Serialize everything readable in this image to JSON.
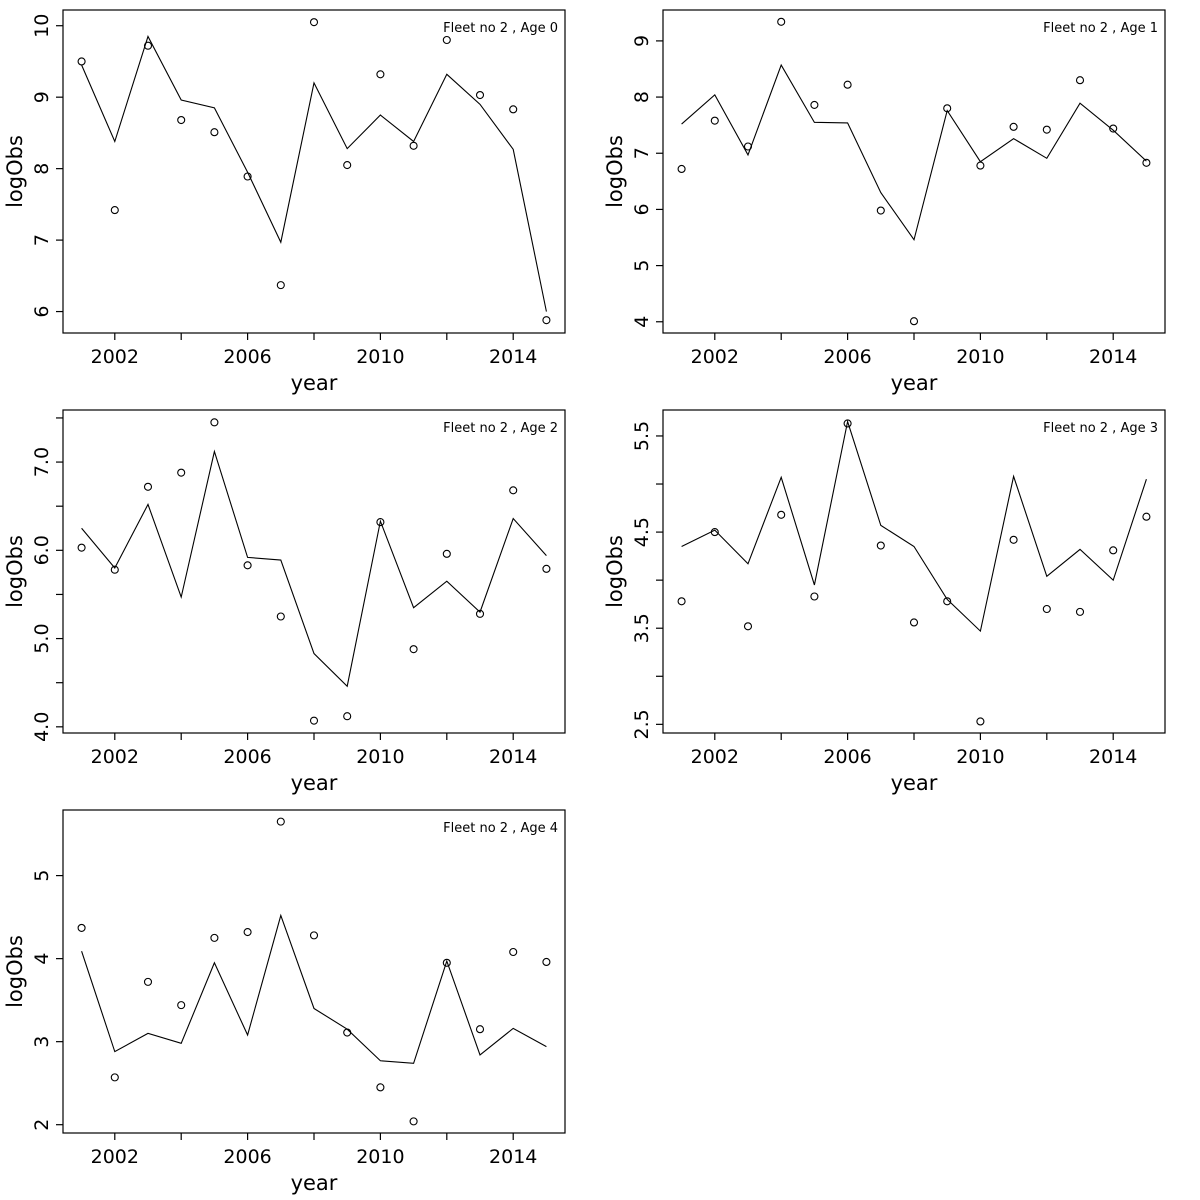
{
  "page": {
    "background": "#ffffff",
    "foreground": "#000000",
    "description": "Grid of five R-style diagnostic plots of observed (open circles) vs fitted (line) log observations by fleet age"
  },
  "chart_data": [
    {
      "type": "line",
      "title": "Fleet no 2 , Age 0",
      "xlabel": "year",
      "ylabel": "logObs",
      "x": [
        2001,
        2002,
        2003,
        2004,
        2005,
        2006,
        2007,
        2008,
        2009,
        2010,
        2011,
        2012,
        2013,
        2014,
        2015
      ],
      "xlim": [
        2000.44,
        2015.56
      ],
      "ylim": [
        5.7,
        10.22
      ],
      "xticks": {
        "values": [
          2002,
          2004,
          2006,
          2008,
          2010,
          2012,
          2014
        ],
        "labels": [
          "2002",
          "",
          "2006",
          "",
          "2010",
          "",
          "2014"
        ]
      },
      "yticks": {
        "values": [
          6,
          7,
          8,
          9,
          10
        ],
        "labels": [
          "6",
          "7",
          "8",
          "9",
          "10"
        ]
      },
      "grid": false,
      "legend": "none",
      "series": [
        {
          "name": "observed",
          "style": "points",
          "values": [
            9.5,
            7.42,
            9.72,
            8.68,
            8.51,
            7.89,
            6.37,
            10.05,
            8.05,
            9.32,
            8.32,
            9.8,
            9.03,
            8.83,
            5.88
          ]
        },
        {
          "name": "fitted",
          "style": "line",
          "values": [
            9.45,
            8.38,
            9.85,
            8.96,
            8.85,
            7.95,
            6.97,
            9.2,
            8.28,
            8.75,
            8.38,
            9.32,
            8.9,
            8.27,
            6.0
          ]
        }
      ]
    },
    {
      "type": "line",
      "title": "Fleet no 2 , Age 1",
      "xlabel": "year",
      "ylabel": "logObs",
      "x": [
        2001,
        2002,
        2003,
        2004,
        2005,
        2006,
        2007,
        2008,
        2009,
        2010,
        2011,
        2012,
        2013,
        2014,
        2015
      ],
      "xlim": [
        2000.44,
        2015.56
      ],
      "ylim": [
        3.8,
        9.55
      ],
      "xticks": {
        "values": [
          2002,
          2004,
          2006,
          2008,
          2010,
          2012,
          2014
        ],
        "labels": [
          "2002",
          "",
          "2006",
          "",
          "2010",
          "",
          "2014"
        ]
      },
      "yticks": {
        "values": [
          4,
          5,
          6,
          7,
          8,
          9
        ],
        "labels": [
          "4",
          "5",
          "6",
          "7",
          "8",
          "9"
        ]
      },
      "grid": false,
      "legend": "none",
      "series": [
        {
          "name": "observed",
          "style": "points",
          "values": [
            6.72,
            7.58,
            7.12,
            9.34,
            7.86,
            8.22,
            5.98,
            4.01,
            7.8,
            6.78,
            7.47,
            7.42,
            8.3,
            7.44,
            6.83
          ]
        },
        {
          "name": "fitted",
          "style": "line",
          "values": [
            7.52,
            8.04,
            6.97,
            8.57,
            7.55,
            7.54,
            6.3,
            5.46,
            7.76,
            6.85,
            7.26,
            6.91,
            7.89,
            7.41,
            6.86
          ]
        }
      ]
    },
    {
      "type": "line",
      "title": "Fleet no 2 , Age 2",
      "xlabel": "year",
      "ylabel": "logObs",
      "x": [
        2001,
        2002,
        2003,
        2004,
        2005,
        2006,
        2007,
        2008,
        2009,
        2010,
        2011,
        2012,
        2013,
        2014,
        2015
      ],
      "xlim": [
        2000.44,
        2015.56
      ],
      "ylim": [
        3.93,
        7.59
      ],
      "xticks": {
        "values": [
          2002,
          2004,
          2006,
          2008,
          2010,
          2012,
          2014
        ],
        "labels": [
          "2002",
          "",
          "2006",
          "",
          "2010",
          "",
          "2014"
        ]
      },
      "yticks": {
        "values": [
          4.0,
          4.5,
          5.0,
          5.5,
          6.0,
          6.5,
          7.0,
          7.5
        ],
        "labels": [
          "4.0",
          "",
          "5.0",
          "",
          "6.0",
          "",
          "7.0",
          ""
        ]
      },
      "grid": false,
      "legend": "none",
      "series": [
        {
          "name": "observed",
          "style": "points",
          "values": [
            6.03,
            5.78,
            6.72,
            6.88,
            7.45,
            5.83,
            5.25,
            4.07,
            4.12,
            6.32,
            4.88,
            5.96,
            5.28,
            6.68,
            5.79
          ]
        },
        {
          "name": "fitted",
          "style": "line",
          "values": [
            6.25,
            5.8,
            6.52,
            5.47,
            7.12,
            5.92,
            5.89,
            4.83,
            4.46,
            6.33,
            5.35,
            5.65,
            5.3,
            6.36,
            5.94
          ]
        }
      ]
    },
    {
      "type": "line",
      "title": "Fleet no 2 , Age 3",
      "xlabel": "year",
      "ylabel": "logObs",
      "x": [
        2001,
        2002,
        2003,
        2004,
        2005,
        2006,
        2007,
        2008,
        2009,
        2010,
        2011,
        2012,
        2013,
        2014,
        2015
      ],
      "xlim": [
        2000.44,
        2015.56
      ],
      "ylim": [
        2.41,
        5.77
      ],
      "xticks": {
        "values": [
          2002,
          2004,
          2006,
          2008,
          2010,
          2012,
          2014
        ],
        "labels": [
          "2002",
          "",
          "2006",
          "",
          "2010",
          "",
          "2014"
        ]
      },
      "yticks": {
        "values": [
          2.5,
          3.0,
          3.5,
          4.0,
          4.5,
          5.0,
          5.5
        ],
        "labels": [
          "2.5",
          "",
          "3.5",
          "",
          "4.5",
          "",
          "5.5"
        ]
      },
      "grid": false,
      "legend": "none",
      "series": [
        {
          "name": "observed",
          "style": "points",
          "values": [
            3.78,
            4.5,
            3.52,
            4.68,
            3.83,
            5.63,
            4.36,
            3.56,
            3.78,
            2.53,
            4.42,
            3.7,
            3.67,
            4.31,
            4.66
          ]
        },
        {
          "name": "fitted",
          "style": "line",
          "values": [
            4.35,
            4.52,
            4.17,
            5.07,
            3.95,
            5.65,
            4.57,
            4.35,
            3.8,
            3.47,
            5.08,
            4.04,
            4.32,
            4.0,
            5.05
          ]
        }
      ]
    },
    {
      "type": "line",
      "title": "Fleet no 2 , Age 4",
      "xlabel": "year",
      "ylabel": "logObs",
      "x": [
        2001,
        2002,
        2003,
        2004,
        2005,
        2006,
        2007,
        2008,
        2009,
        2010,
        2011,
        2012,
        2013,
        2014,
        2015
      ],
      "xlim": [
        2000.44,
        2015.56
      ],
      "ylim": [
        1.9,
        5.79
      ],
      "xticks": {
        "values": [
          2002,
          2004,
          2006,
          2008,
          2010,
          2012,
          2014
        ],
        "labels": [
          "2002",
          "",
          "2006",
          "",
          "2010",
          "",
          "2014"
        ]
      },
      "yticks": {
        "values": [
          2,
          3,
          4,
          5
        ],
        "labels": [
          "2",
          "3",
          "4",
          "5"
        ]
      },
      "grid": false,
      "legend": "none",
      "series": [
        {
          "name": "observed",
          "style": "points",
          "values": [
            4.37,
            2.57,
            3.72,
            3.44,
            4.25,
            4.32,
            5.65,
            4.28,
            3.11,
            2.45,
            2.04,
            3.95,
            3.15,
            4.08,
            3.96
          ]
        },
        {
          "name": "fitted",
          "style": "line",
          "values": [
            4.09,
            2.88,
            3.1,
            2.98,
            3.95,
            3.08,
            4.52,
            3.4,
            3.15,
            2.77,
            2.74,
            3.97,
            2.84,
            3.16,
            2.94
          ]
        }
      ]
    }
  ]
}
